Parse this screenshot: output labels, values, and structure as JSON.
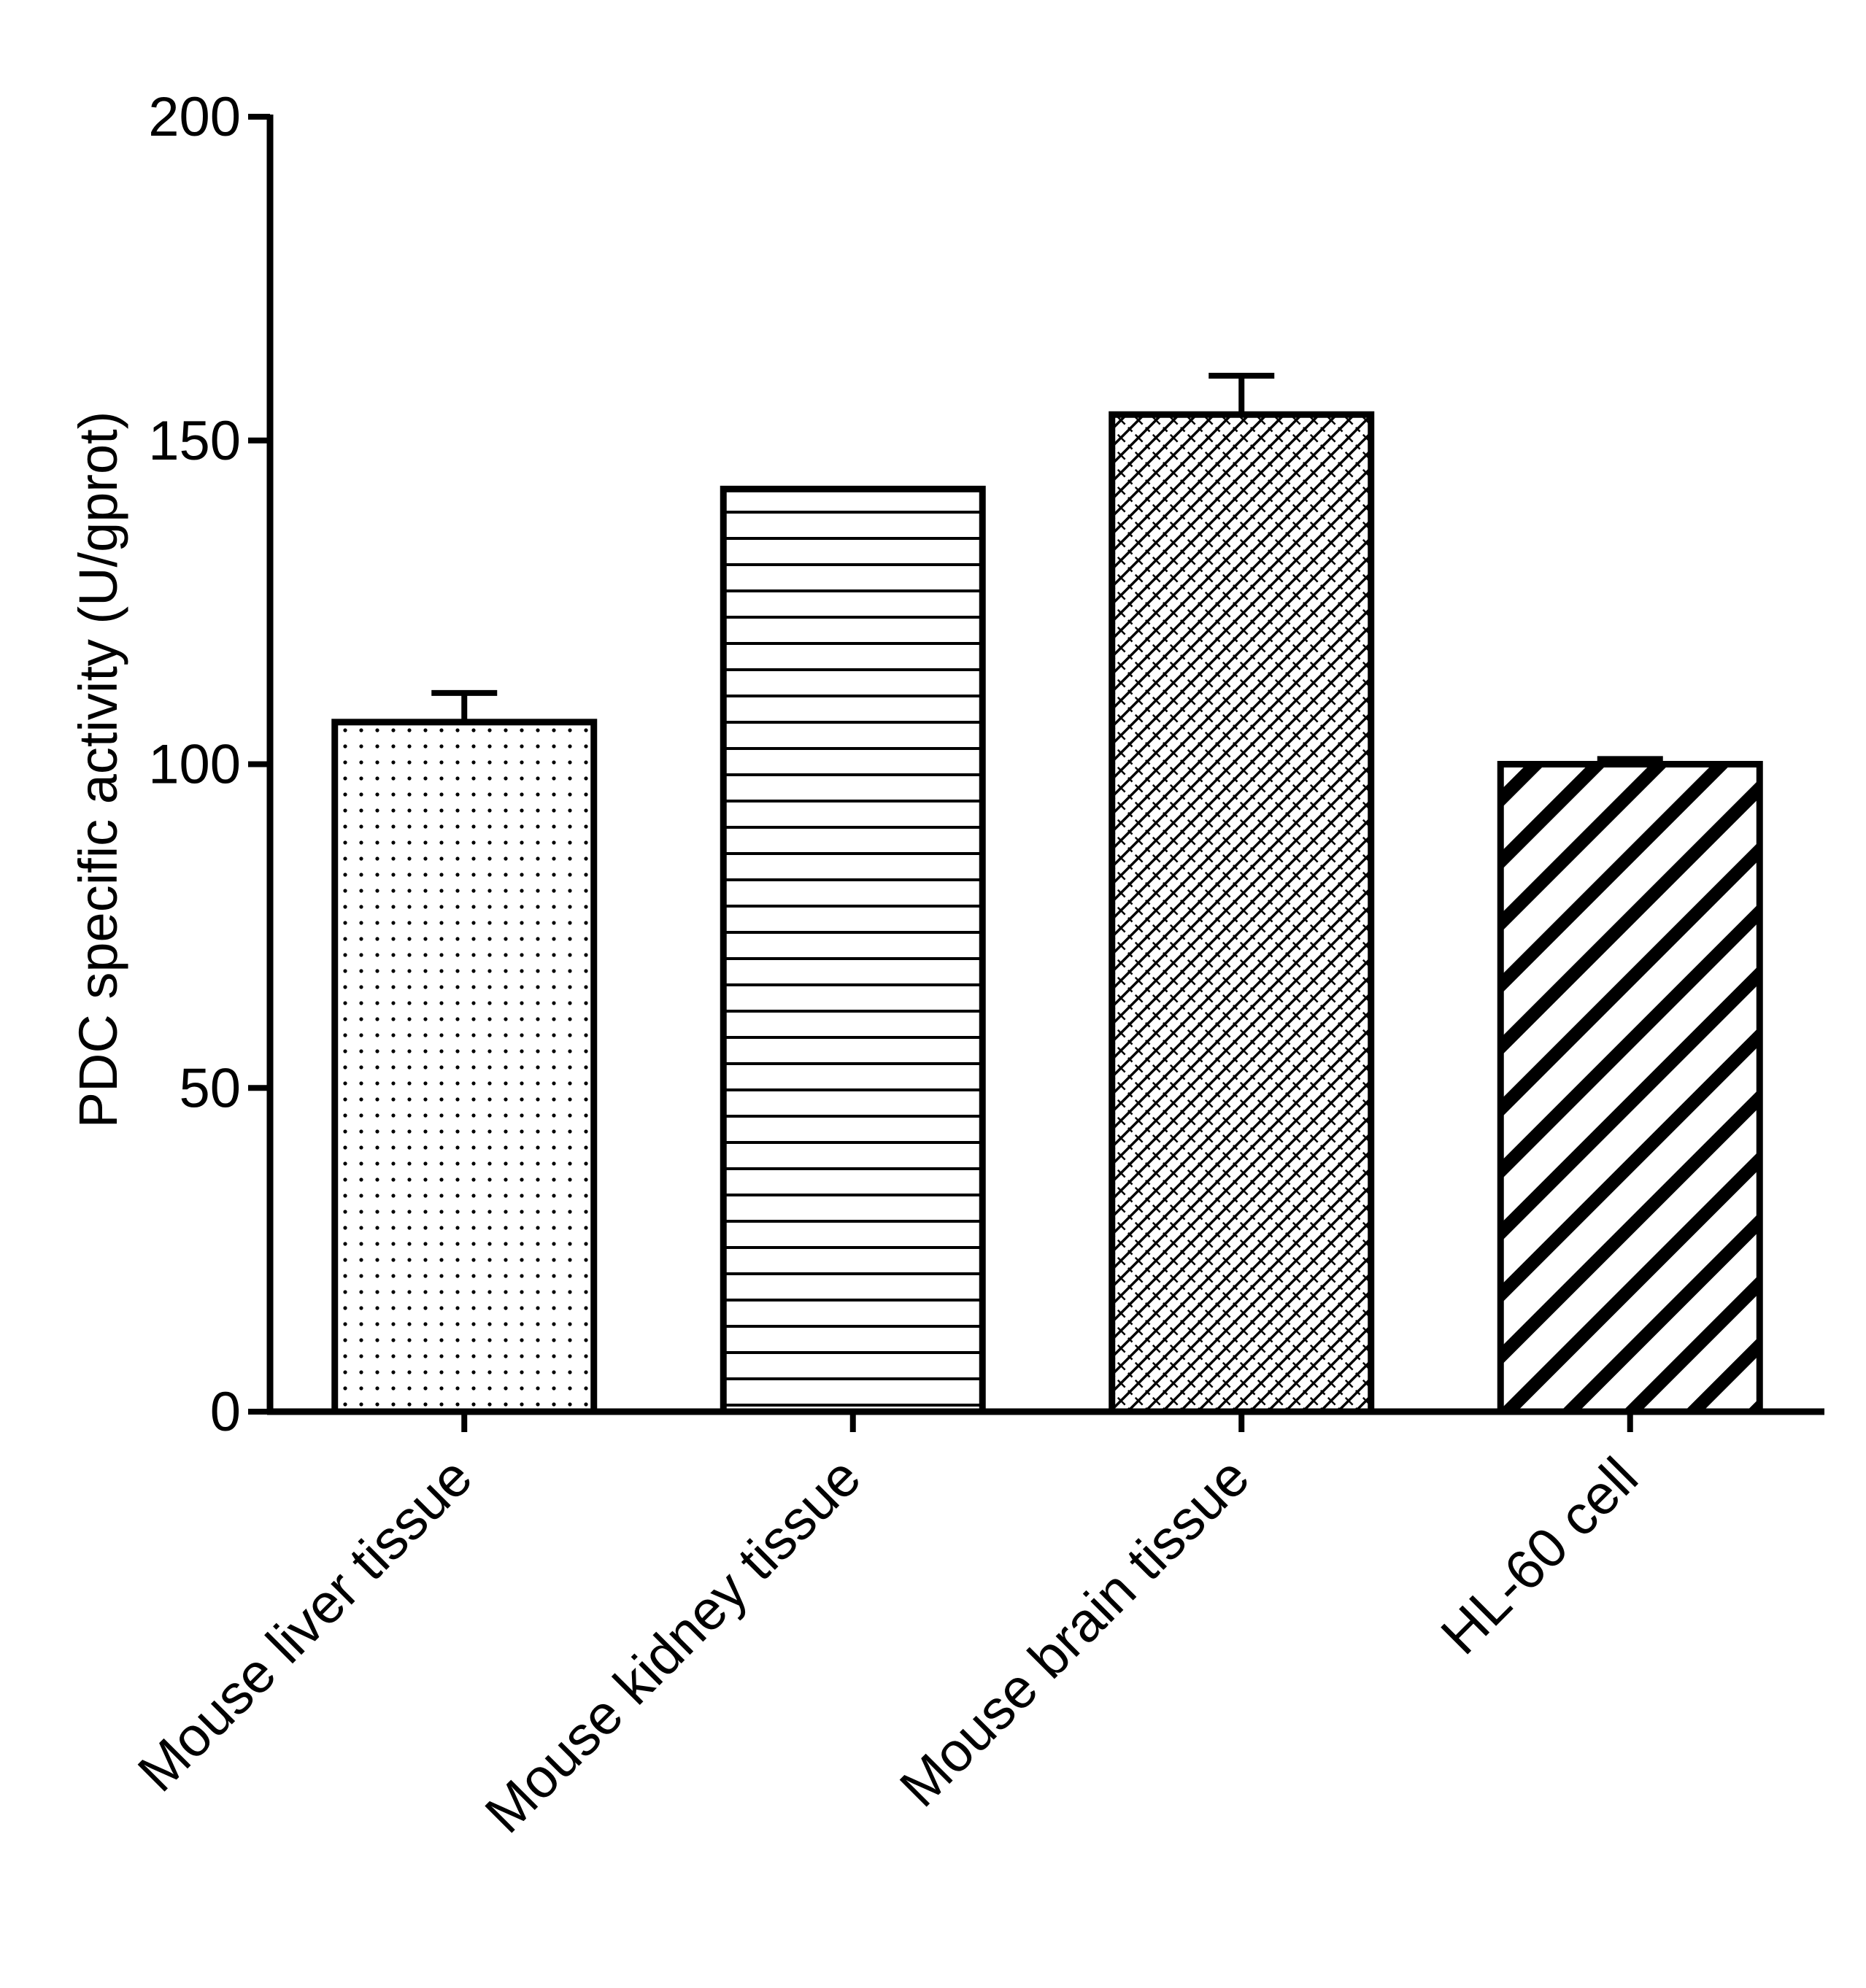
{
  "chart_data": {
    "type": "bar",
    "title": "",
    "xlabel": "",
    "ylabel": "PDC specific activity (U/gprot)",
    "ylim": [
      0,
      200
    ],
    "yticks": [
      0,
      50,
      100,
      150,
      200
    ],
    "yticks_text": [
      "0",
      "50",
      "100",
      "150",
      "200"
    ],
    "grid": false,
    "legend": "none",
    "categories": [
      "Mouse liver tissue",
      "Mouse kidney tissue",
      "Mouse brain tissue",
      "HL-60 cell"
    ],
    "values": [
      106.5,
      142.5,
      154,
      100
    ],
    "errors": [
      4.5,
      0,
      6,
      0.8
    ],
    "patterns": [
      "dots",
      "horizontal-lines",
      "crosshatch",
      "diagonal-stripes"
    ],
    "colors": {
      "stroke": "#000000",
      "fill": "#ffffff"
    }
  }
}
